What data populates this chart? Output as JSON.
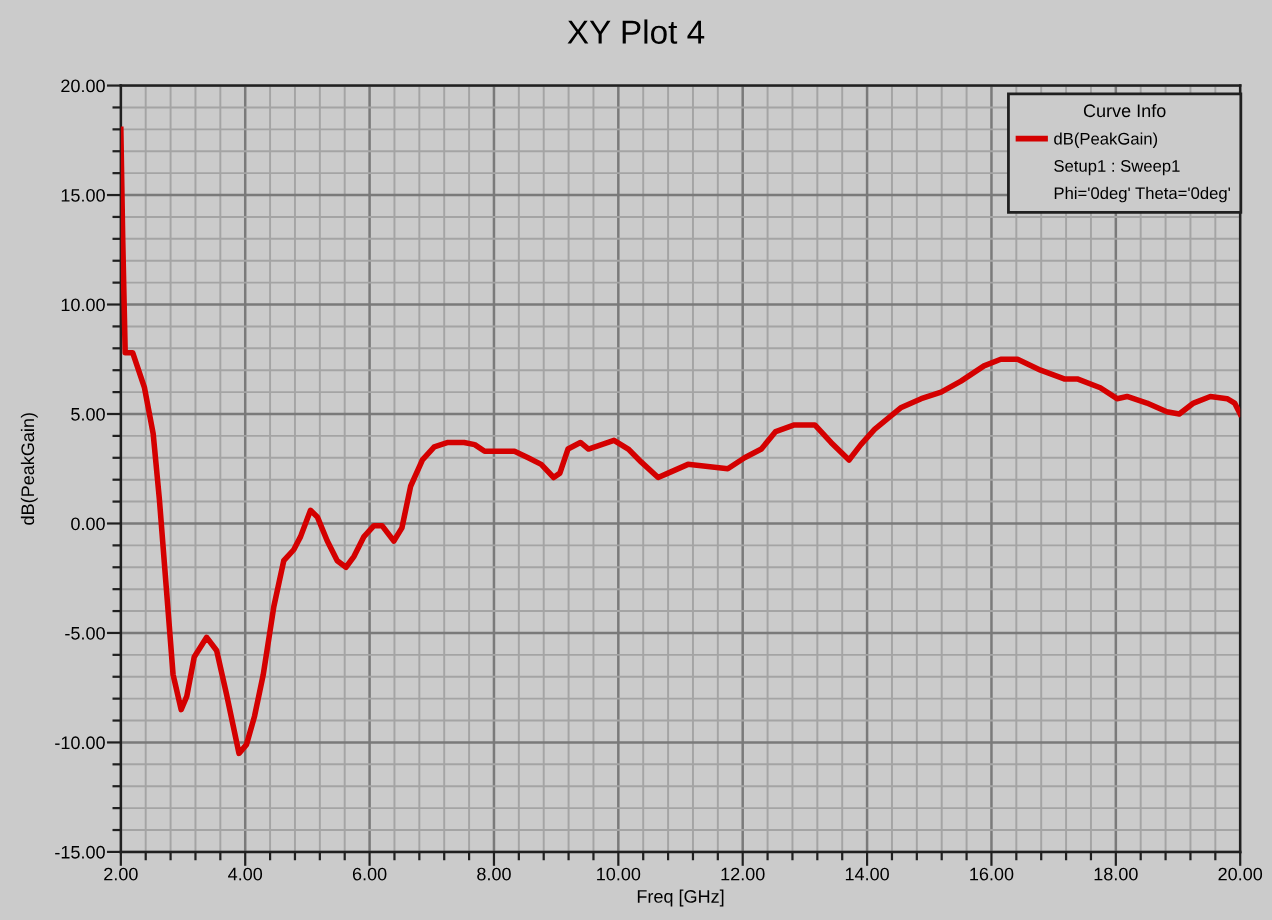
{
  "chart_data": {
    "type": "line",
    "title": "XY Plot 4",
    "xlabel": "Freq [GHz]",
    "ylabel": "dB(PeakGain)",
    "legend_title": "Curve Info",
    "legend": "top right",
    "grid": true,
    "marker": "none",
    "line_style": "solid",
    "annotations": [
      "Setup1 : Sweep1",
      "Phi='0deg' Theta='0deg'"
    ],
    "xlim": [
      2,
      20
    ],
    "ylim": [
      -15,
      20
    ],
    "xticks": [
      {
        "value": 2,
        "label": "2.00"
      },
      {
        "value": 2.4,
        "label": null
      },
      {
        "value": 2.8,
        "label": null
      },
      {
        "value": 3.2,
        "label": null
      },
      {
        "value": 3.6,
        "label": null
      },
      {
        "value": 4,
        "label": "4.00"
      },
      {
        "value": 4.4,
        "label": null
      },
      {
        "value": 4.8,
        "label": null
      },
      {
        "value": 5.2,
        "label": null
      },
      {
        "value": 5.6,
        "label": null
      },
      {
        "value": 6,
        "label": "6.00"
      },
      {
        "value": 6.4,
        "label": null
      },
      {
        "value": 6.8,
        "label": null
      },
      {
        "value": 7.2,
        "label": null
      },
      {
        "value": 7.6,
        "label": null
      },
      {
        "value": 8,
        "label": "8.00"
      },
      {
        "value": 8.4,
        "label": null
      },
      {
        "value": 8.8,
        "label": null
      },
      {
        "value": 9.2,
        "label": null
      },
      {
        "value": 9.6,
        "label": null
      },
      {
        "value": 10,
        "label": "10.00"
      },
      {
        "value": 10.4,
        "label": null
      },
      {
        "value": 10.8,
        "label": null
      },
      {
        "value": 11.2,
        "label": null
      },
      {
        "value": 11.6,
        "label": null
      },
      {
        "value": 12,
        "label": "12.00"
      },
      {
        "value": 12.4,
        "label": null
      },
      {
        "value": 12.8,
        "label": null
      },
      {
        "value": 13.2,
        "label": null
      },
      {
        "value": 13.6,
        "label": null
      },
      {
        "value": 14,
        "label": "14.00"
      },
      {
        "value": 14.4,
        "label": null
      },
      {
        "value": 14.8,
        "label": null
      },
      {
        "value": 15.2,
        "label": null
      },
      {
        "value": 15.6,
        "label": null
      },
      {
        "value": 16,
        "label": "16.00"
      },
      {
        "value": 16.4,
        "label": null
      },
      {
        "value": 16.8,
        "label": null
      },
      {
        "value": 17.2,
        "label": null
      },
      {
        "value": 17.6,
        "label": null
      },
      {
        "value": 18,
        "label": "18.00"
      },
      {
        "value": 18.4,
        "label": null
      },
      {
        "value": 18.8,
        "label": null
      },
      {
        "value": 19.2,
        "label": null
      },
      {
        "value": 19.6,
        "label": null
      },
      {
        "value": 20,
        "label": "20.00"
      }
    ],
    "yticks": [
      {
        "value": -15,
        "label": "-15.00"
      },
      {
        "value": -14,
        "label": null
      },
      {
        "value": -13,
        "label": null
      },
      {
        "value": -12,
        "label": null
      },
      {
        "value": -11,
        "label": null
      },
      {
        "value": -10,
        "label": "-10.00"
      },
      {
        "value": -9,
        "label": null
      },
      {
        "value": -8,
        "label": null
      },
      {
        "value": -7,
        "label": null
      },
      {
        "value": -6,
        "label": null
      },
      {
        "value": -5,
        "label": "-5.00"
      },
      {
        "value": -4,
        "label": null
      },
      {
        "value": -3,
        "label": null
      },
      {
        "value": -2,
        "label": null
      },
      {
        "value": -1,
        "label": null
      },
      {
        "value": 0,
        "label": "0.00"
      },
      {
        "value": 1,
        "label": null
      },
      {
        "value": 2,
        "label": null
      },
      {
        "value": 3,
        "label": null
      },
      {
        "value": 4,
        "label": null
      },
      {
        "value": 5,
        "label": "5.00"
      },
      {
        "value": 6,
        "label": null
      },
      {
        "value": 7,
        "label": null
      },
      {
        "value": 8,
        "label": null
      },
      {
        "value": 9,
        "label": null
      },
      {
        "value": 10,
        "label": "10.00"
      },
      {
        "value": 11,
        "label": null
      },
      {
        "value": 12,
        "label": null
      },
      {
        "value": 13,
        "label": null
      },
      {
        "value": 14,
        "label": null
      },
      {
        "value": 15,
        "label": "15.00"
      },
      {
        "value": 16,
        "label": null
      },
      {
        "value": 17,
        "label": null
      },
      {
        "value": 18,
        "label": null
      },
      {
        "value": 19,
        "label": null
      },
      {
        "value": 20,
        "label": "20.00"
      }
    ],
    "x": [
      2.0,
      2.03,
      2.07,
      2.19,
      2.38,
      2.52,
      2.62,
      2.73,
      2.84,
      2.97,
      3.06,
      3.18,
      3.38,
      3.54,
      3.7,
      3.9,
      4.02,
      4.15,
      4.29,
      4.46,
      4.62,
      4.78,
      4.89,
      5.05,
      5.16,
      5.32,
      5.48,
      5.62,
      5.75,
      5.91,
      6.07,
      6.2,
      6.39,
      6.52,
      6.66,
      6.85,
      7.04,
      7.26,
      7.52,
      7.69,
      7.85,
      8.33,
      8.55,
      8.76,
      8.96,
      9.06,
      9.19,
      9.39,
      9.52,
      9.73,
      9.93,
      10.16,
      10.37,
      10.64,
      10.8,
      11.12,
      11.44,
      11.76,
      12.03,
      12.3,
      12.53,
      12.83,
      13.16,
      13.42,
      13.71,
      13.9,
      14.12,
      14.55,
      14.87,
      15.19,
      15.51,
      15.88,
      16.15,
      16.42,
      16.79,
      17.17,
      17.38,
      17.75,
      18.02,
      18.18,
      18.5,
      18.82,
      19.02,
      19.25,
      19.52,
      19.79,
      19.91,
      20.0
    ],
    "series": [
      {
        "name": "dB(PeakGain)",
        "color": "#d40000",
        "values": [
          18.0,
          13.0,
          7.8,
          7.8,
          6.2,
          4.1,
          1.1,
          -2.9,
          -6.9,
          -8.5,
          -7.9,
          -6.1,
          -5.2,
          -5.8,
          -7.8,
          -10.5,
          -10.1,
          -8.8,
          -6.9,
          -3.8,
          -1.7,
          -1.2,
          -0.6,
          0.6,
          0.3,
          -0.8,
          -1.7,
          -2.0,
          -1.5,
          -0.6,
          -0.1,
          -0.1,
          -0.8,
          -0.2,
          1.7,
          2.9,
          3.5,
          3.7,
          3.7,
          3.6,
          3.3,
          3.3,
          3.0,
          2.7,
          2.1,
          2.3,
          3.4,
          3.7,
          3.4,
          3.6,
          3.8,
          3.4,
          2.8,
          2.1,
          2.3,
          2.7,
          2.6,
          2.5,
          3.0,
          3.4,
          4.2,
          4.5,
          4.5,
          3.7,
          2.9,
          3.6,
          4.3,
          5.3,
          5.7,
          6.0,
          6.5,
          7.2,
          7.5,
          7.5,
          7.0,
          6.6,
          6.6,
          6.2,
          5.7,
          5.8,
          5.5,
          5.1,
          5.0,
          5.5,
          5.8,
          5.7,
          5.5,
          5.0
        ]
      }
    ]
  }
}
